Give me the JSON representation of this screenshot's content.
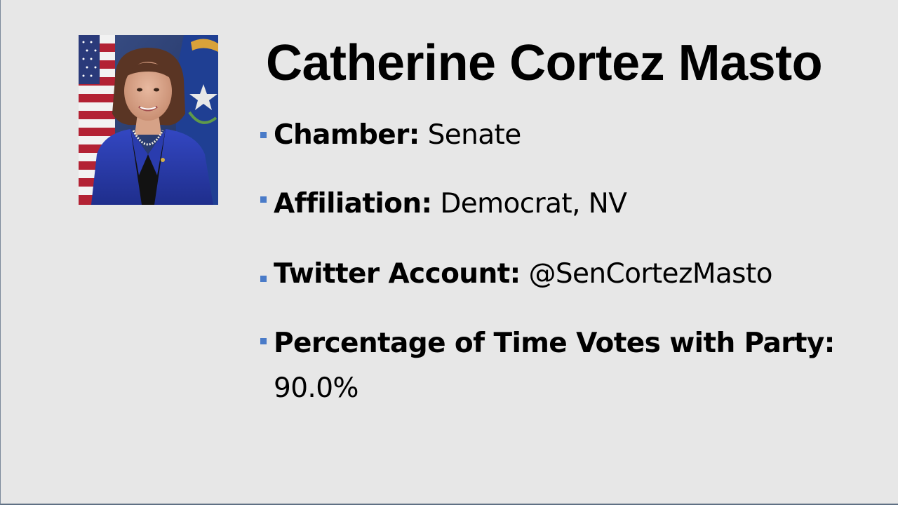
{
  "title": "Catherine Cortez Masto",
  "photo": {
    "subject": "official portrait",
    "background_flags": [
      "us-flag",
      "nevada-flag"
    ],
    "colors": {
      "jacket": "#2b3fb0",
      "background": "#1e3d7a"
    }
  },
  "bullets": [
    {
      "label": "Chamber:",
      "value": "Senate"
    },
    {
      "label": "Affiliation:",
      "value": "Democrat, NV"
    },
    {
      "label": "Twitter Account:",
      "value": "@SenCortezMasto"
    },
    {
      "label": "Percentage of Time Votes with Party:",
      "value": "90.0%"
    }
  ],
  "colors": {
    "background": "#e7e7e7",
    "bullet_marker": "#4a7bc8",
    "text": "#000000"
  }
}
